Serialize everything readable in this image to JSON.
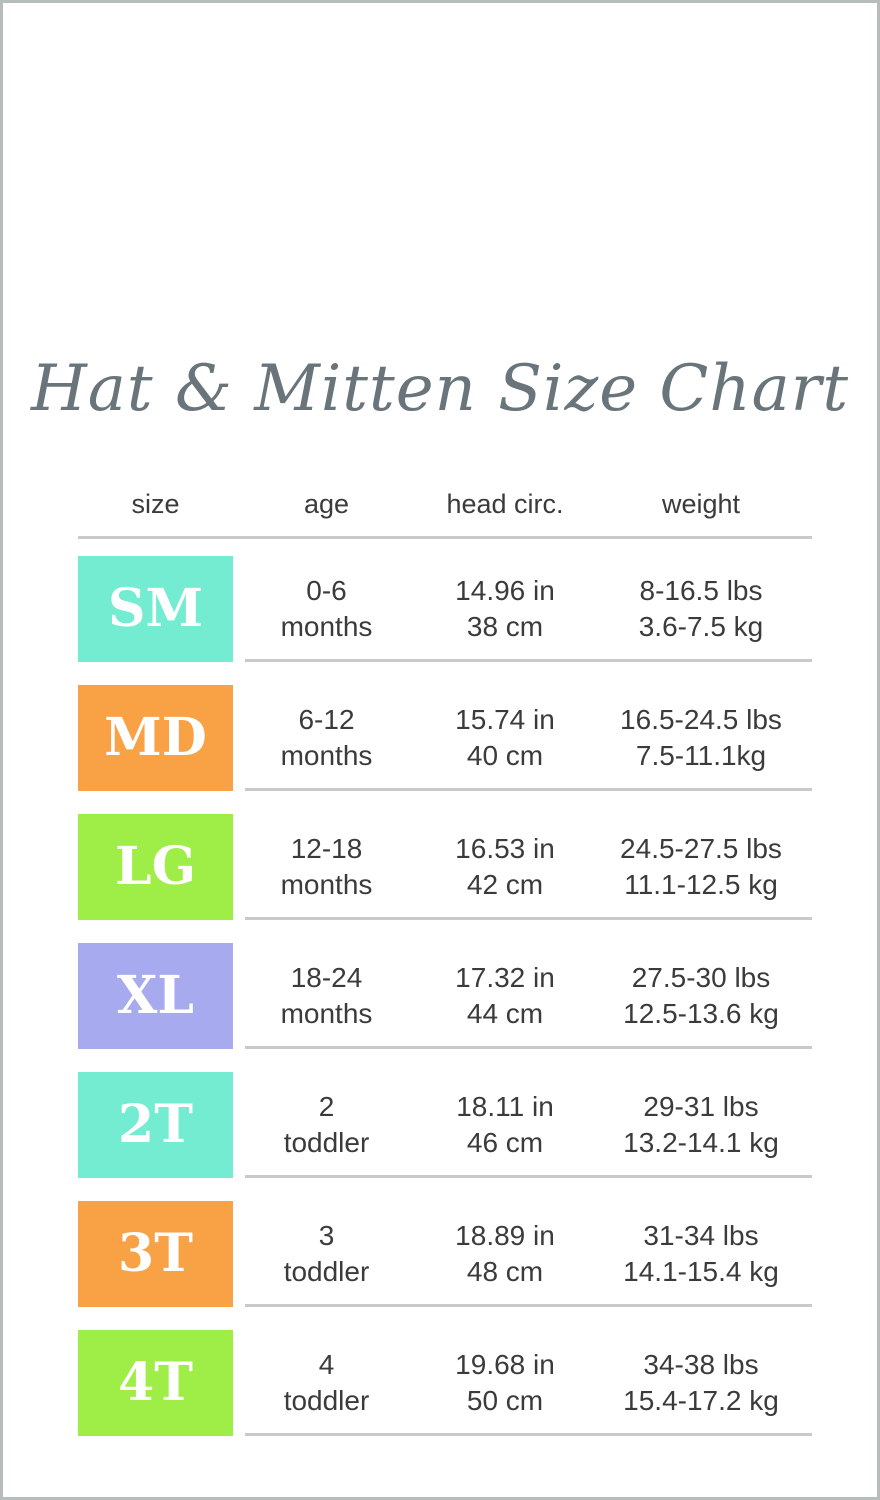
{
  "page": {
    "title": "Hat & Mitten Size Chart"
  },
  "colors": {
    "teal": "#74ecd2",
    "orange": "#f8a145",
    "lime": "#9fee47",
    "lavender": "#a8aaf0",
    "divider": "#c9c9c9",
    "title_text": "#6a757b",
    "body_text": "#3b3b3b"
  },
  "table": {
    "columns": [
      "size",
      "age",
      "head circ.",
      "weight"
    ],
    "rows": [
      {
        "size": "SM",
        "color": "#74ecd2",
        "age": [
          "0-6",
          "months"
        ],
        "head": [
          "14.96 in",
          "38 cm"
        ],
        "weight": [
          "8-16.5 lbs",
          "3.6-7.5 kg"
        ]
      },
      {
        "size": "MD",
        "color": "#f8a145",
        "age": [
          "6-12",
          "months"
        ],
        "head": [
          "15.74 in",
          "40 cm"
        ],
        "weight": [
          "16.5-24.5 lbs",
          "7.5-11.1kg"
        ]
      },
      {
        "size": "LG",
        "color": "#9fee47",
        "age": [
          "12-18",
          "months"
        ],
        "head": [
          "16.53 in",
          "42 cm"
        ],
        "weight": [
          "24.5-27.5 lbs",
          "11.1-12.5 kg"
        ]
      },
      {
        "size": "XL",
        "color": "#a8aaf0",
        "age": [
          "18-24",
          "months"
        ],
        "head": [
          "17.32 in",
          "44 cm"
        ],
        "weight": [
          "27.5-30 lbs",
          "12.5-13.6 kg"
        ]
      },
      {
        "size": "2T",
        "color": "#74ecd2",
        "age": [
          "2",
          "toddler"
        ],
        "head": [
          "18.11 in",
          "46 cm"
        ],
        "weight": [
          "29-31 lbs",
          "13.2-14.1 kg"
        ]
      },
      {
        "size": "3T",
        "color": "#f8a145",
        "age": [
          "3",
          "toddler"
        ],
        "head": [
          "18.89 in",
          "48 cm"
        ],
        "weight": [
          "31-34 lbs",
          "14.1-15.4 kg"
        ]
      },
      {
        "size": "4T",
        "color": "#9fee47",
        "age": [
          "4",
          "toddler"
        ],
        "head": [
          "19.68 in",
          "50 cm"
        ],
        "weight": [
          "34-38 lbs",
          "15.4-17.2 kg"
        ]
      }
    ]
  },
  "chart_data": {
    "type": "table",
    "title": "Hat & Mitten Size Chart",
    "columns": [
      "size",
      "age",
      "head circ.",
      "weight"
    ],
    "rows": [
      [
        "SM",
        "0-6 months",
        "14.96 in / 38 cm",
        "8-16.5 lbs / 3.6-7.5 kg"
      ],
      [
        "MD",
        "6-12 months",
        "15.74 in / 40 cm",
        "16.5-24.5 lbs / 7.5-11.1kg"
      ],
      [
        "LG",
        "12-18 months",
        "16.53 in / 42 cm",
        "24.5-27.5 lbs / 11.1-12.5 kg"
      ],
      [
        "XL",
        "18-24 months",
        "17.32 in / 44 cm",
        "27.5-30 lbs / 12.5-13.6 kg"
      ],
      [
        "2T",
        "2 toddler",
        "18.11 in / 46 cm",
        "29-31 lbs / 13.2-14.1 kg"
      ],
      [
        "3T",
        "3 toddler",
        "18.89 in / 48 cm",
        "31-34 lbs / 14.1-15.4 kg"
      ],
      [
        "4T",
        "4 toddler",
        "19.68 in / 50 cm",
        "34-38 lbs / 15.4-17.2 kg"
      ]
    ]
  }
}
